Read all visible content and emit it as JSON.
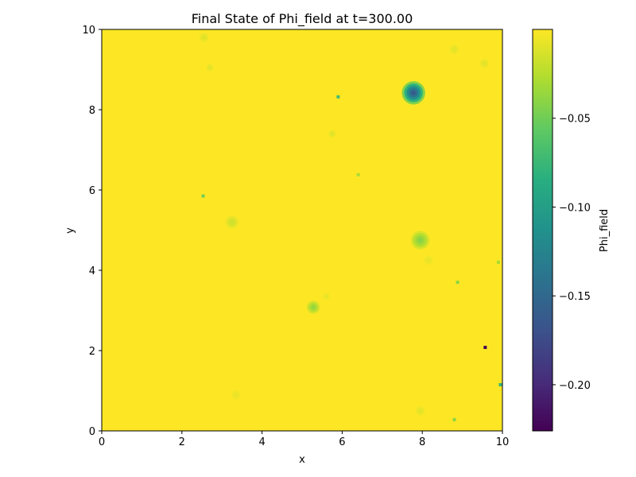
{
  "chart_data": {
    "type": "heatmap",
    "title": "Final State of Phi_field at t=300.00",
    "xlabel": "x",
    "ylabel": "y",
    "xlim": [
      0,
      10
    ],
    "ylim": [
      0,
      10
    ],
    "x_ticks": [
      "0",
      "2",
      "4",
      "6",
      "8",
      "10"
    ],
    "y_ticks": [
      "0",
      "2",
      "4",
      "6",
      "8",
      "10"
    ],
    "colorbar": {
      "label": "Phi_field",
      "range": [
        -0.226,
        0.0
      ],
      "colormap": "viridis",
      "ticks": [
        "−0.05",
        "−0.10",
        "−0.15",
        "−0.20"
      ],
      "tick_values": [
        -0.05,
        -0.1,
        -0.15,
        -0.2
      ]
    },
    "background_value": 0.0,
    "features": [
      {
        "label": "dip-1",
        "x": 7.78,
        "y": 8.42,
        "value": -0.17,
        "radius": 0.35
      },
      {
        "label": "dip-2",
        "x": 7.95,
        "y": 4.75,
        "value": -0.045,
        "radius": 0.28
      },
      {
        "label": "dip-3",
        "x": 5.28,
        "y": 3.08,
        "value": -0.04,
        "radius": 0.2
      },
      {
        "label": "dip-4",
        "x": 3.25,
        "y": 5.2,
        "value": -0.018,
        "radius": 0.2
      },
      {
        "label": "dip-5",
        "x": 2.55,
        "y": 9.8,
        "value": -0.012,
        "radius": 0.15
      },
      {
        "label": "dip-6",
        "x": 2.7,
        "y": 9.05,
        "value": -0.01,
        "radius": 0.12
      },
      {
        "label": "dip-7",
        "x": 8.8,
        "y": 9.5,
        "value": -0.01,
        "radius": 0.15
      },
      {
        "label": "dip-8",
        "x": 9.55,
        "y": 9.15,
        "value": -0.01,
        "radius": 0.15
      },
      {
        "label": "dip-9",
        "x": 5.75,
        "y": 7.4,
        "value": -0.012,
        "radius": 0.12
      },
      {
        "label": "dip-10",
        "x": 7.95,
        "y": 0.5,
        "value": -0.01,
        "radius": 0.15
      },
      {
        "label": "dip-11",
        "x": 3.35,
        "y": 0.9,
        "value": -0.008,
        "radius": 0.15
      },
      {
        "label": "dip-12",
        "x": 8.15,
        "y": 4.25,
        "value": -0.008,
        "radius": 0.15
      },
      {
        "label": "dip-13",
        "x": 5.6,
        "y": 3.35,
        "value": -0.008,
        "radius": 0.12
      },
      {
        "label": "pixel-1",
        "x": 5.9,
        "y": 8.32,
        "value": -0.07,
        "pixel": true
      },
      {
        "label": "pixel-2",
        "x": 2.53,
        "y": 5.85,
        "value": -0.05,
        "pixel": true
      },
      {
        "label": "pixel-3",
        "x": 8.88,
        "y": 3.7,
        "value": -0.04,
        "pixel": true
      },
      {
        "label": "pixel-4",
        "x": 8.8,
        "y": 0.28,
        "value": -0.04,
        "pixel": true
      },
      {
        "label": "pixel-5",
        "x": 9.95,
        "y": 1.15,
        "value": -0.08,
        "pixel": true
      },
      {
        "label": "pixel-6",
        "x": 9.9,
        "y": 4.2,
        "value": -0.03,
        "pixel": true
      },
      {
        "label": "pixel-7",
        "x": 6.4,
        "y": 6.38,
        "value": -0.03,
        "pixel": true
      },
      {
        "label": "pixel-8",
        "x": 9.57,
        "y": 2.08,
        "value": -0.226,
        "pixel": true
      }
    ]
  }
}
